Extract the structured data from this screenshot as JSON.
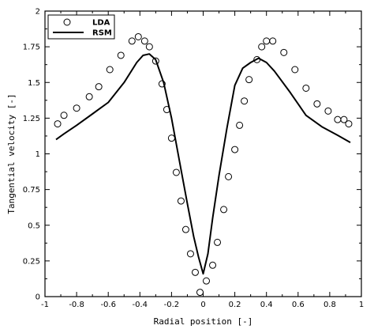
{
  "chart_data": {
    "type": "scatter",
    "xlabel": "Radial position [-]",
    "ylabel": "Tangential velocity [-]",
    "xlim": [
      -1,
      1
    ],
    "ylim": [
      0,
      2
    ],
    "grid": false,
    "legend_position": "top-left",
    "x_ticks": [
      "-1",
      "-0.8",
      "-0.6",
      "-0.4",
      "-0.2",
      "0",
      "0.2",
      "0.4",
      "0.6",
      "0.8",
      "1"
    ],
    "y_ticks": [
      "0",
      "0.25",
      "0.5",
      "0.75",
      "1",
      "1.25",
      "1.5",
      "1.75",
      "2"
    ],
    "series": [
      {
        "name": "LDA",
        "style": "open-circle",
        "points": [
          [
            -0.92,
            1.21
          ],
          [
            -0.88,
            1.27
          ],
          [
            -0.8,
            1.32
          ],
          [
            -0.72,
            1.4
          ],
          [
            -0.66,
            1.47
          ],
          [
            -0.59,
            1.59
          ],
          [
            -0.52,
            1.69
          ],
          [
            -0.45,
            1.79
          ],
          [
            -0.41,
            1.82
          ],
          [
            -0.37,
            1.79
          ],
          [
            -0.34,
            1.75
          ],
          [
            -0.3,
            1.65
          ],
          [
            -0.26,
            1.49
          ],
          [
            -0.23,
            1.31
          ],
          [
            -0.2,
            1.11
          ],
          [
            -0.17,
            0.87
          ],
          [
            -0.14,
            0.67
          ],
          [
            -0.11,
            0.47
          ],
          [
            -0.08,
            0.3
          ],
          [
            -0.05,
            0.17
          ],
          [
            -0.02,
            0.03
          ],
          [
            0.02,
            0.11
          ],
          [
            0.06,
            0.22
          ],
          [
            0.09,
            0.38
          ],
          [
            0.13,
            0.61
          ],
          [
            0.16,
            0.84
          ],
          [
            0.2,
            1.03
          ],
          [
            0.23,
            1.2
          ],
          [
            0.26,
            1.37
          ],
          [
            0.29,
            1.52
          ],
          [
            0.34,
            1.66
          ],
          [
            0.37,
            1.75
          ],
          [
            0.4,
            1.79
          ],
          [
            0.44,
            1.79
          ],
          [
            0.51,
            1.71
          ],
          [
            0.58,
            1.59
          ],
          [
            0.65,
            1.46
          ],
          [
            0.72,
            1.35
          ],
          [
            0.79,
            1.3
          ],
          [
            0.85,
            1.24
          ],
          [
            0.89,
            1.24
          ],
          [
            0.92,
            1.21
          ]
        ]
      },
      {
        "name": "RSM",
        "style": "line",
        "points": [
          [
            -0.93,
            1.1
          ],
          [
            -0.88,
            1.14
          ],
          [
            -0.8,
            1.2
          ],
          [
            -0.7,
            1.28
          ],
          [
            -0.6,
            1.36
          ],
          [
            -0.5,
            1.5
          ],
          [
            -0.42,
            1.64
          ],
          [
            -0.38,
            1.69
          ],
          [
            -0.34,
            1.7
          ],
          [
            -0.3,
            1.66
          ],
          [
            -0.25,
            1.5
          ],
          [
            -0.2,
            1.25
          ],
          [
            -0.15,
            0.95
          ],
          [
            -0.1,
            0.65
          ],
          [
            -0.06,
            0.42
          ],
          [
            -0.03,
            0.28
          ],
          [
            0.0,
            0.16
          ],
          [
            0.03,
            0.3
          ],
          [
            0.06,
            0.55
          ],
          [
            0.1,
            0.85
          ],
          [
            0.15,
            1.18
          ],
          [
            0.2,
            1.48
          ],
          [
            0.25,
            1.6
          ],
          [
            0.3,
            1.64
          ],
          [
            0.35,
            1.67
          ],
          [
            0.4,
            1.64
          ],
          [
            0.45,
            1.58
          ],
          [
            0.55,
            1.43
          ],
          [
            0.65,
            1.27
          ],
          [
            0.75,
            1.19
          ],
          [
            0.85,
            1.13
          ],
          [
            0.93,
            1.08
          ]
        ]
      }
    ]
  }
}
